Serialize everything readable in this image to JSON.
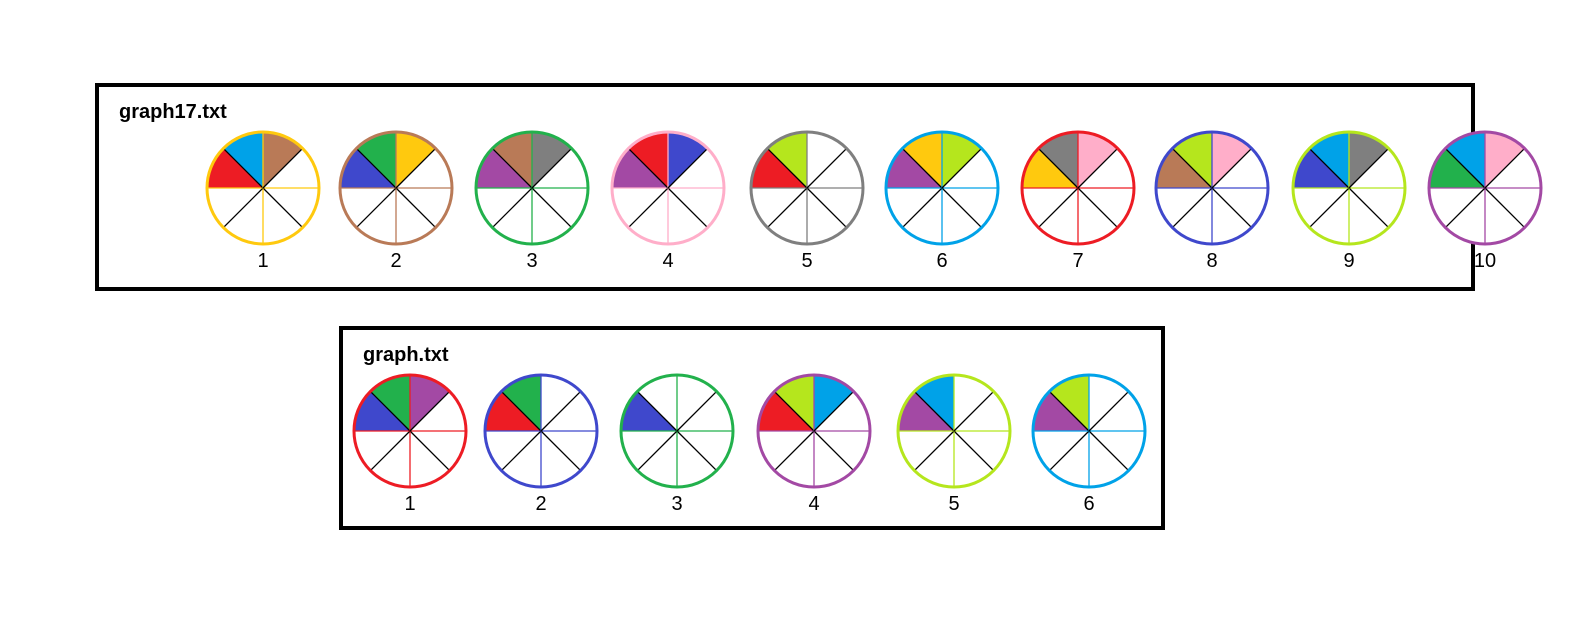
{
  "colors": {
    "red": "#ed1c24",
    "blue": "#3f48cc",
    "green": "#22b14c",
    "yellow": "#ffc90e",
    "brown": "#b97a57",
    "pink": "#ffaec9",
    "purple": "#a349a4",
    "grey": "#7f7f7f",
    "sky": "#00a2e8",
    "lime": "#b5e61d"
  },
  "panels": [
    {
      "title": "graph17.txt",
      "nodes": [
        {
          "label": "1",
          "ring": "yellow",
          "slots": [
            "red",
            "sky",
            "brown",
            null,
            null,
            null,
            null,
            null
          ]
        },
        {
          "label": "2",
          "ring": "brown",
          "slots": [
            "blue",
            "green",
            "yellow",
            null,
            null,
            null,
            null,
            null
          ]
        },
        {
          "label": "3",
          "ring": "green",
          "slots": [
            "purple",
            "brown",
            "grey",
            null,
            null,
            null,
            null,
            null
          ]
        },
        {
          "label": "4",
          "ring": "pink",
          "slots": [
            "purple",
            "red",
            "blue",
            null,
            null,
            null,
            null,
            null
          ]
        },
        {
          "label": "5",
          "ring": "grey",
          "slots": [
            "red",
            "lime",
            null,
            null,
            null,
            null,
            null,
            null
          ]
        },
        {
          "label": "6",
          "ring": "sky",
          "slots": [
            "purple",
            "yellow",
            "lime",
            null,
            null,
            null,
            null,
            null
          ]
        },
        {
          "label": "7",
          "ring": "red",
          "slots": [
            "yellow",
            "grey",
            "pink",
            null,
            null,
            null,
            null,
            null
          ]
        },
        {
          "label": "8",
          "ring": "blue",
          "slots": [
            "brown",
            "lime",
            "pink",
            null,
            null,
            null,
            null,
            null
          ]
        },
        {
          "label": "9",
          "ring": "lime",
          "slots": [
            "blue",
            "sky",
            "grey",
            null,
            null,
            null,
            null,
            null
          ]
        },
        {
          "label": "10",
          "ring": "purple",
          "slots": [
            "green",
            "sky",
            "pink",
            null,
            null,
            null,
            null,
            null
          ]
        }
      ]
    },
    {
      "title": "graph.txt",
      "nodes": [
        {
          "label": "1",
          "ring": "red",
          "slots": [
            "blue",
            "green",
            "purple",
            null,
            null,
            null,
            null,
            null
          ]
        },
        {
          "label": "2",
          "ring": "blue",
          "slots": [
            "red",
            "green",
            null,
            null,
            null,
            null,
            null,
            null
          ]
        },
        {
          "label": "3",
          "ring": "green",
          "slots": [
            "blue",
            null,
            null,
            null,
            null,
            null,
            null,
            null
          ]
        },
        {
          "label": "4",
          "ring": "purple",
          "slots": [
            "red",
            "lime",
            "sky",
            null,
            null,
            null,
            null,
            null
          ]
        },
        {
          "label": "5",
          "ring": "lime",
          "slots": [
            "purple",
            "sky",
            null,
            null,
            null,
            null,
            null,
            null
          ]
        },
        {
          "label": "6",
          "ring": "sky",
          "slots": [
            "purple",
            "lime",
            null,
            null,
            null,
            null,
            null,
            null
          ]
        }
      ]
    }
  ]
}
